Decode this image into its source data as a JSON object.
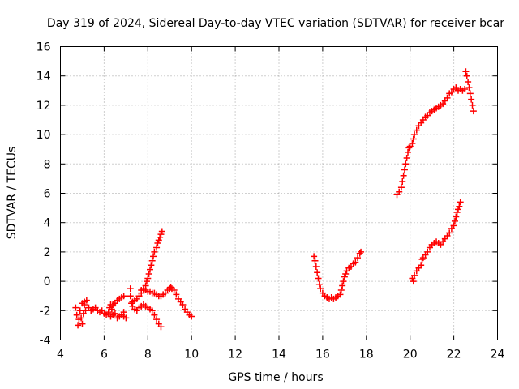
{
  "chart_data": {
    "type": "scatter",
    "title": "Day 319 of 2024, Sidereal Day-to-day VTEC variation (SDTVAR) for receiver bcar",
    "xlabel": "GPS time / hours",
    "ylabel": "SDTVAR / TECUs",
    "xlim": [
      4,
      24
    ],
    "ylim": [
      -4,
      16
    ],
    "x_ticks": [
      "4",
      "6",
      "8",
      "10",
      "12",
      "14",
      "16",
      "18",
      "20",
      "22",
      "24"
    ],
    "y_ticks": [
      "-4",
      "-2",
      "0",
      "2",
      "4",
      "6",
      "8",
      "10",
      "12",
      "14",
      "16"
    ],
    "grid": true,
    "marker": "+",
    "marker_color": "#ff0000",
    "series": [
      {
        "points": [
          [
            4.7,
            -1.8
          ],
          [
            4.75,
            -2.3
          ],
          [
            4.8,
            -3.0
          ],
          [
            4.85,
            -2.6
          ],
          [
            4.9,
            -2.0
          ],
          [
            4.95,
            -2.5
          ],
          [
            5.0,
            -2.9
          ],
          [
            5.05,
            -2.2
          ],
          [
            5.1,
            -1.6
          ],
          [
            5.15,
            -2.0
          ],
          [
            5.0,
            -1.5
          ],
          [
            5.1,
            -1.4
          ],
          [
            5.2,
            -1.3
          ],
          [
            5.3,
            -1.8
          ],
          [
            5.4,
            -2.0
          ],
          [
            5.5,
            -1.9
          ],
          [
            5.6,
            -1.8
          ],
          [
            5.7,
            -2.0
          ],
          [
            5.8,
            -2.1
          ],
          [
            5.9,
            -2.0
          ],
          [
            6.0,
            -2.2
          ],
          [
            6.1,
            -2.3
          ],
          [
            6.2,
            -2.2
          ],
          [
            6.3,
            -2.4
          ],
          [
            6.4,
            -2.3
          ],
          [
            6.5,
            -2.2
          ],
          [
            6.6,
            -2.5
          ],
          [
            6.7,
            -2.4
          ],
          [
            6.8,
            -2.3
          ],
          [
            6.9,
            -2.1
          ],
          [
            6.2,
            -2.1
          ],
          [
            6.25,
            -1.8
          ],
          [
            6.3,
            -1.6
          ],
          [
            6.35,
            -1.9
          ],
          [
            6.4,
            -1.6
          ],
          [
            6.5,
            -1.5
          ],
          [
            6.6,
            -1.3
          ],
          [
            6.7,
            -1.2
          ],
          [
            6.8,
            -1.1
          ],
          [
            6.9,
            -1.0
          ],
          [
            6.9,
            -2.4
          ],
          [
            7.0,
            -2.5
          ]
        ]
      },
      {
        "points": [
          [
            7.2,
            -0.5
          ],
          [
            7.2,
            -1.0
          ],
          [
            7.25,
            -1.5
          ],
          [
            7.3,
            -1.7
          ],
          [
            7.4,
            -1.9
          ],
          [
            7.5,
            -2.0
          ],
          [
            7.6,
            -1.8
          ],
          [
            7.7,
            -1.7
          ],
          [
            7.8,
            -1.6
          ],
          [
            7.9,
            -1.7
          ],
          [
            8.0,
            -1.8
          ],
          [
            8.1,
            -1.9
          ],
          [
            8.2,
            -2.0
          ],
          [
            8.3,
            -2.3
          ],
          [
            8.4,
            -2.6
          ],
          [
            8.5,
            -2.9
          ],
          [
            8.6,
            -3.1
          ],
          [
            7.3,
            -1.4
          ],
          [
            7.4,
            -1.3
          ],
          [
            7.5,
            -1.2
          ],
          [
            7.6,
            -1.0
          ],
          [
            7.7,
            -0.8
          ],
          [
            7.8,
            -0.6
          ],
          [
            7.9,
            -0.3
          ],
          [
            7.95,
            0.0
          ],
          [
            8.0,
            0.2
          ],
          [
            8.05,
            0.5
          ],
          [
            8.1,
            0.8
          ],
          [
            8.15,
            1.1
          ],
          [
            8.2,
            1.4
          ],
          [
            8.25,
            1.7
          ],
          [
            8.3,
            2.0
          ],
          [
            8.4,
            2.3
          ],
          [
            8.45,
            2.6
          ],
          [
            8.5,
            2.8
          ],
          [
            8.55,
            3.0
          ],
          [
            8.6,
            3.2
          ],
          [
            8.65,
            3.4
          ],
          [
            7.7,
            -0.6
          ],
          [
            7.8,
            -0.5
          ],
          [
            7.9,
            -0.6
          ],
          [
            8.0,
            -0.7
          ],
          [
            8.1,
            -0.7
          ],
          [
            8.2,
            -0.8
          ],
          [
            8.3,
            -0.8
          ],
          [
            8.4,
            -0.9
          ],
          [
            8.5,
            -1.0
          ],
          [
            8.6,
            -1.0
          ],
          [
            8.7,
            -0.9
          ],
          [
            8.8,
            -0.8
          ],
          [
            8.9,
            -0.6
          ],
          [
            9.0,
            -0.5
          ],
          [
            9.05,
            -0.4
          ],
          [
            9.1,
            -0.5
          ],
          [
            9.2,
            -0.6
          ],
          [
            9.3,
            -0.9
          ],
          [
            9.4,
            -1.2
          ],
          [
            9.5,
            -1.4
          ],
          [
            9.6,
            -1.6
          ],
          [
            9.7,
            -1.9
          ],
          [
            9.8,
            -2.1
          ],
          [
            9.9,
            -2.3
          ],
          [
            10.0,
            -2.4
          ]
        ]
      },
      {
        "points": [
          [
            15.6,
            1.7
          ],
          [
            15.65,
            1.4
          ],
          [
            15.7,
            1.0
          ],
          [
            15.75,
            0.6
          ],
          [
            15.8,
            0.2
          ],
          [
            15.85,
            -0.2
          ],
          [
            15.9,
            -0.5
          ],
          [
            16.0,
            -0.8
          ],
          [
            16.1,
            -1.0
          ],
          [
            16.2,
            -1.1
          ],
          [
            16.3,
            -1.2
          ],
          [
            16.4,
            -1.1
          ],
          [
            16.5,
            -1.2
          ],
          [
            16.6,
            -1.1
          ],
          [
            16.7,
            -1.0
          ],
          [
            16.8,
            -0.9
          ],
          [
            16.85,
            -0.6
          ],
          [
            16.9,
            -0.3
          ],
          [
            16.95,
            0.0
          ],
          [
            17.0,
            0.3
          ],
          [
            17.05,
            0.5
          ],
          [
            17.1,
            0.7
          ],
          [
            17.2,
            0.9
          ],
          [
            17.3,
            1.0
          ],
          [
            17.4,
            1.2
          ],
          [
            17.5,
            1.3
          ],
          [
            17.6,
            1.6
          ],
          [
            17.7,
            1.9
          ],
          [
            17.75,
            2.0
          ]
        ]
      },
      {
        "points": [
          [
            19.4,
            5.9
          ],
          [
            19.5,
            6.1
          ],
          [
            19.6,
            6.4
          ],
          [
            19.65,
            6.8
          ],
          [
            19.7,
            7.2
          ],
          [
            19.75,
            7.6
          ],
          [
            19.8,
            8.0
          ],
          [
            19.85,
            8.4
          ],
          [
            19.9,
            8.8
          ],
          [
            19.95,
            9.1
          ],
          [
            20.0,
            9.2
          ],
          [
            20.1,
            9.4
          ],
          [
            20.15,
            9.7
          ],
          [
            20.2,
            10.0
          ],
          [
            20.3,
            10.3
          ],
          [
            20.4,
            10.6
          ],
          [
            20.5,
            10.8
          ],
          [
            20.6,
            11.0
          ],
          [
            20.7,
            11.2
          ],
          [
            20.8,
            11.3
          ],
          [
            20.9,
            11.5
          ],
          [
            21.0,
            11.6
          ],
          [
            21.1,
            11.7
          ],
          [
            21.2,
            11.8
          ],
          [
            21.3,
            11.9
          ],
          [
            21.4,
            12.0
          ],
          [
            21.5,
            12.1
          ],
          [
            21.6,
            12.3
          ],
          [
            21.7,
            12.5
          ],
          [
            21.8,
            12.8
          ],
          [
            21.9,
            12.9
          ],
          [
            22.0,
            13.1
          ],
          [
            22.1,
            13.2
          ],
          [
            22.2,
            13.0
          ],
          [
            22.3,
            13.1
          ],
          [
            22.4,
            13.0
          ],
          [
            22.5,
            13.1
          ],
          [
            22.55,
            14.3
          ],
          [
            22.6,
            14.0
          ],
          [
            22.65,
            13.6
          ],
          [
            22.7,
            13.2
          ],
          [
            22.75,
            12.8
          ],
          [
            22.8,
            12.4
          ],
          [
            22.85,
            12.0
          ],
          [
            22.9,
            11.6
          ]
        ]
      },
      {
        "points": [
          [
            20.1,
            0.2
          ],
          [
            20.15,
            0.0
          ],
          [
            20.2,
            0.4
          ],
          [
            20.3,
            0.7
          ],
          [
            20.4,
            0.9
          ],
          [
            20.5,
            1.1
          ],
          [
            20.55,
            1.5
          ],
          [
            20.6,
            1.6
          ],
          [
            20.7,
            1.8
          ],
          [
            20.8,
            2.0
          ],
          [
            20.9,
            2.3
          ],
          [
            21.0,
            2.5
          ],
          [
            21.1,
            2.6
          ],
          [
            21.2,
            2.7
          ],
          [
            21.3,
            2.6
          ],
          [
            21.4,
            2.5
          ],
          [
            21.5,
            2.7
          ],
          [
            21.6,
            2.9
          ],
          [
            21.7,
            3.1
          ],
          [
            21.8,
            3.3
          ],
          [
            21.9,
            3.6
          ],
          [
            22.0,
            3.8
          ],
          [
            22.05,
            4.1
          ],
          [
            22.1,
            4.4
          ],
          [
            22.15,
            4.7
          ],
          [
            22.2,
            4.9
          ],
          [
            22.25,
            5.1
          ],
          [
            22.3,
            5.4
          ]
        ]
      }
    ]
  }
}
